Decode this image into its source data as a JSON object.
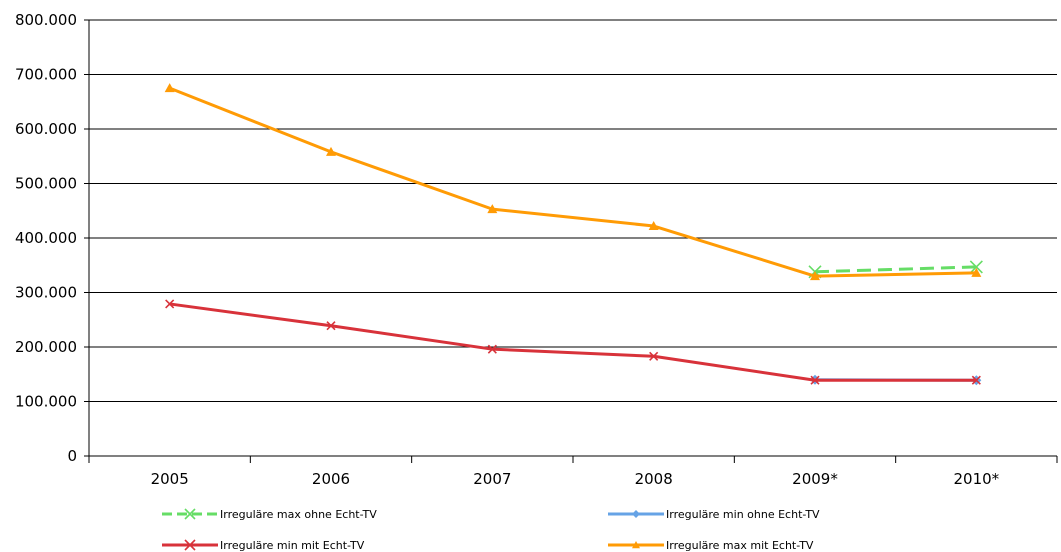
{
  "chart_data": {
    "type": "line",
    "title": "",
    "xlabel": "",
    "ylabel": "",
    "categories": [
      "2005",
      "2006",
      "2007",
      "2008",
      "2009*",
      "2010*"
    ],
    "ylim": [
      0,
      800000
    ],
    "yticks": [
      0,
      100000,
      200000,
      300000,
      400000,
      500000,
      600000,
      700000,
      800000
    ],
    "ytick_labels": [
      "0",
      "100.000",
      "200.000",
      "300.000",
      "400.000",
      "500.000",
      "600.000",
      "700.000",
      "800.000"
    ],
    "grid": "horizontal",
    "legend_position": "bottom",
    "series": [
      {
        "name": "Irreguläre max ohne Echt-TV",
        "values": [
          null,
          null,
          null,
          null,
          338000,
          347000
        ],
        "color": "#66dd66",
        "dash": true,
        "marker": "x-cross"
      },
      {
        "name": "Irreguläre min ohne Echt-TV",
        "values": [
          null,
          null,
          null,
          null,
          140000,
          139000
        ],
        "color": "#66a3e6",
        "dash": false,
        "marker": "diamond"
      },
      {
        "name": "Irreguläre min mit Echt-TV",
        "values": [
          279000,
          239000,
          196000,
          183000,
          139000,
          139000
        ],
        "color": "#d8323a",
        "dash": false,
        "marker": "x-cross"
      },
      {
        "name": "Irreguläre max mit Echt-TV",
        "values": [
          675000,
          558000,
          453000,
          422000,
          330000,
          336000
        ],
        "color": "#ff9b05",
        "dash": false,
        "marker": "triangle"
      }
    ]
  }
}
